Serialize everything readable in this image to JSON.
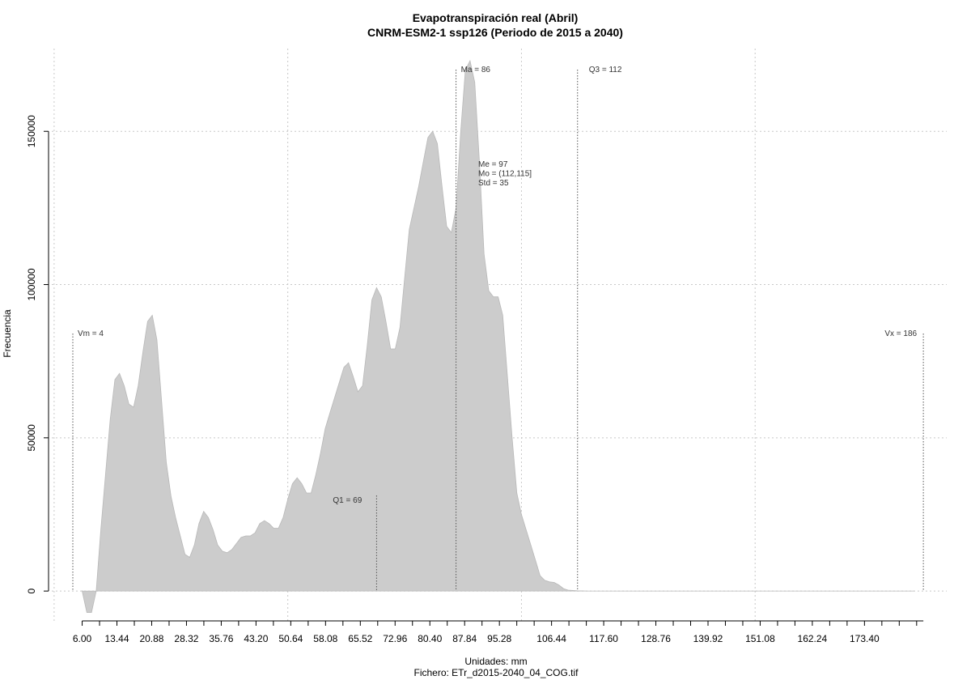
{
  "chart_data": {
    "type": "area",
    "title": "Evapotranspiración real (Abril)",
    "subtitle": "CNRM-ESM2-1 ssp126 (Periodo de 2015 a 2040)",
    "xlabel": "Unidades: mm",
    "ylabel": "Frecuencia",
    "footer": "Fichero: ETr_d2015-2040_04_COG.tif",
    "xlim": [
      -0.5,
      191
    ],
    "ylim": [
      -10000,
      177000
    ],
    "x_ticks": [
      "6.00",
      "13.44",
      "20.88",
      "28.32",
      "35.76",
      "43.20",
      "50.64",
      "58.08",
      "65.52",
      "72.96",
      "80.40",
      "87.84",
      "95.28",
      "106.44",
      "117.60",
      "128.76",
      "139.92",
      "151.08",
      "162.24",
      "173.40"
    ],
    "x_tick_values": [
      6.0,
      13.44,
      20.88,
      28.32,
      35.76,
      43.2,
      50.64,
      58.08,
      65.52,
      72.96,
      80.4,
      87.84,
      95.28,
      106.44,
      117.6,
      128.76,
      139.92,
      151.08,
      162.24,
      173.4
    ],
    "x_minor_step": 3.72,
    "x_minor_range": [
      6.0,
      186.0
    ],
    "y_ticks": [
      0,
      50000,
      100000,
      150000
    ],
    "x_grid": [
      0,
      50,
      100,
      150
    ],
    "color": "#cccccc",
    "x": [
      6,
      7,
      8,
      9,
      10,
      11,
      12,
      13,
      14,
      15,
      16,
      17,
      18,
      19,
      20,
      21,
      22,
      23,
      24,
      25,
      26,
      27,
      28,
      29,
      30,
      31,
      32,
      33,
      34,
      35,
      36,
      37,
      38,
      39,
      40,
      41,
      42,
      43,
      44,
      45,
      46,
      47,
      48,
      49,
      50,
      51,
      52,
      53,
      54,
      55,
      56,
      57,
      58,
      59,
      60,
      61,
      62,
      63,
      64,
      65,
      66,
      67,
      68,
      69,
      70,
      71,
      72,
      73,
      74,
      75,
      76,
      77,
      78,
      79,
      80,
      81,
      82,
      83,
      84,
      85,
      86,
      87,
      88,
      89,
      90,
      91,
      92,
      93,
      94,
      95,
      96,
      97,
      98,
      99,
      100,
      101,
      102,
      103,
      104,
      105,
      106,
      107,
      108,
      109,
      110,
      111,
      112,
      113,
      114,
      115,
      116,
      117,
      118,
      119,
      120,
      121,
      122,
      123,
      124,
      125,
      126,
      127,
      128,
      129,
      130,
      131,
      132,
      133,
      134,
      135,
      136,
      137,
      138,
      139,
      140,
      141,
      142,
      143,
      144,
      145,
      146,
      147,
      148,
      149,
      150,
      152,
      154,
      158,
      165,
      175,
      184
    ],
    "values": [
      0,
      -7000,
      -7000,
      0,
      20000,
      38000,
      56000,
      69000,
      71000,
      67000,
      61000,
      60000,
      67000,
      78000,
      88000,
      90000,
      82000,
      62000,
      42000,
      31000,
      24000,
      18000,
      12000,
      11000,
      15000,
      22000,
      26000,
      24000,
      20000,
      15000,
      13000,
      12500,
      13500,
      15500,
      17500,
      18000,
      18000,
      19000,
      22000,
      23000,
      22000,
      20500,
      20500,
      24000,
      30000,
      35000,
      37000,
      35000,
      32000,
      32000,
      38000,
      45000,
      53000,
      58000,
      63000,
      68000,
      73000,
      74500,
      70000,
      65000,
      67000,
      80000,
      95000,
      99000,
      96000,
      88000,
      79000,
      79000,
      86000,
      102000,
      118000,
      125000,
      132000,
      140000,
      148000,
      150000,
      146000,
      132000,
      119000,
      117000,
      125000,
      150000,
      170000,
      173000,
      166000,
      140000,
      110000,
      98000,
      96000,
      96000,
      90000,
      70000,
      50000,
      32000,
      25000,
      20000,
      15000,
      10000,
      5000,
      3500,
      3000,
      2800,
      2000,
      800,
      300,
      200,
      100,
      50,
      20,
      0,
      0,
      0,
      0,
      0,
      0,
      0,
      0,
      0,
      0,
      0,
      0,
      0,
      0,
      0,
      0,
      0,
      0,
      0,
      0,
      0,
      0,
      0,
      0,
      0,
      0,
      0,
      0,
      0,
      0,
      0,
      0,
      0,
      0,
      0,
      0,
      0,
      0,
      0,
      0,
      0,
      0
    ],
    "annotations": [
      {
        "label": "Vm = 4",
        "x": 4
      },
      {
        "label": "Q1 = 69",
        "x": 69
      },
      {
        "label": "Ma = 86",
        "x": 86
      },
      {
        "label": "Q3 = 112",
        "x": 112
      },
      {
        "label": "Vx = 186",
        "x": 186
      }
    ],
    "stats": [
      "Me = 97",
      "Mo = (112,115]",
      "Std = 35"
    ]
  }
}
